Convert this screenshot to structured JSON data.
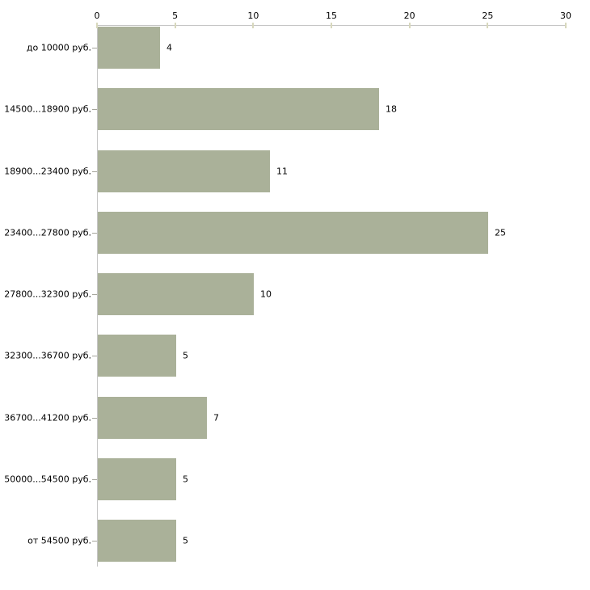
{
  "colors": {
    "background": "#ffffff",
    "bar_fill": "#aab199",
    "axis_line": "#c6c6c6",
    "x_tick_mark": "#d8d8bd",
    "category_tick_mark": "#a5a59b",
    "text": "#000000"
  },
  "chart_data": {
    "type": "bar",
    "orientation": "horizontal",
    "title": "",
    "xlabel": "",
    "ylabel": "",
    "categories": [
      "до 10000 руб.",
      "14500...18900 руб.",
      "18900...23400 руб.",
      "23400...27800 руб.",
      "27800...32300 руб.",
      "32300...36700 руб.",
      "36700...41200 руб.",
      "50000...54500 руб.",
      "от 54500 руб."
    ],
    "values": [
      4,
      18,
      11,
      25,
      10,
      5,
      7,
      5,
      5
    ],
    "x_ticks": [
      0,
      5,
      10,
      15,
      20,
      25,
      30
    ],
    "xlim": [
      0,
      30
    ],
    "grid": false,
    "legend": "none",
    "value_labels": true,
    "x_axis_position": "top"
  }
}
